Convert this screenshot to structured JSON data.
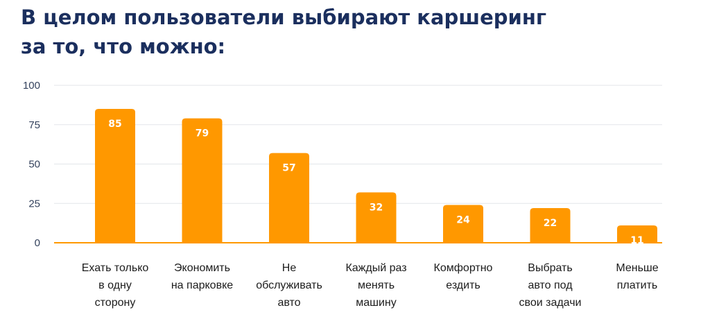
{
  "title": "В целом пользователи выбирают каршеринг\nза то, что можно:",
  "colors": {
    "bar": "#ff9800",
    "grid": "#e3e6ea",
    "axis": "#ff9800",
    "title": "#1b2f5e"
  },
  "chart_data": {
    "type": "bar",
    "title": "В целом пользователи выбирают каршеринг за то, что можно:",
    "xlabel": "",
    "ylabel": "",
    "ylim": [
      0,
      100
    ],
    "yticks": [
      0,
      25,
      50,
      75,
      100
    ],
    "grid": true,
    "categories": [
      "Ехать только\nв одну\nсторону",
      "Экономить\nна парковке",
      "Не\nобслуживать\nавто",
      "Каждый раз\nменять\nмашину",
      "Комфортно\nездить",
      "Выбрать\nавто под\nсвои задачи",
      "Меньше\nплатить"
    ],
    "values": [
      85,
      79,
      57,
      32,
      24,
      22,
      11
    ]
  }
}
